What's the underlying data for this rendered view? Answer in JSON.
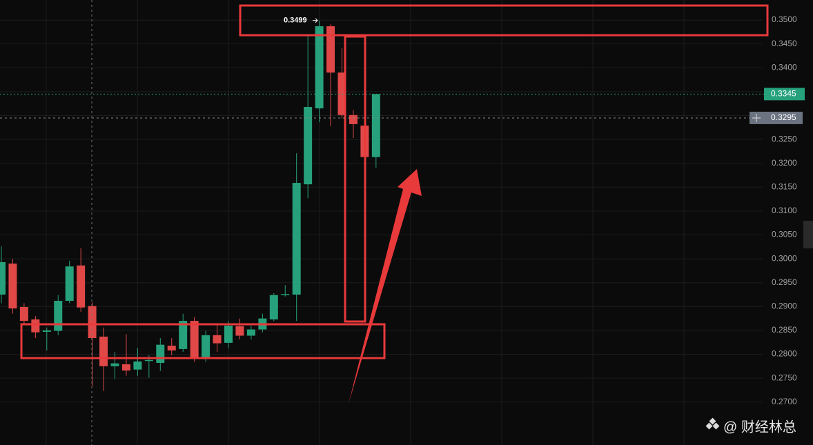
{
  "chart_data": {
    "type": "candlestick",
    "open": [
      0.2925,
      0.299,
      0.2899,
      0.2873,
      0.2847,
      0.2849,
      0.2912,
      0.2986,
      0.2901,
      0.2837,
      0.2775,
      0.2779,
      0.2768,
      0.2786,
      0.2782,
      0.2818,
      0.2811,
      0.287,
      0.279,
      0.284,
      0.2824,
      0.2859,
      0.2839,
      0.2852,
      0.2873,
      0.2924,
      0.2925,
      0.3156,
      0.3315,
      0.3487,
      0.339,
      0.3301,
      0.3279,
      0.3213
    ],
    "high": [
      0.3026,
      0.3,
      0.2907,
      0.288,
      0.2856,
      0.2924,
      0.2996,
      0.3022,
      0.2909,
      0.2856,
      0.2805,
      0.2842,
      0.2813,
      0.2798,
      0.2834,
      0.2834,
      0.2885,
      0.2878,
      0.2849,
      0.2863,
      0.287,
      0.2875,
      0.286,
      0.2885,
      0.2928,
      0.2945,
      0.3221,
      0.347,
      0.3499,
      0.3491,
      0.3441,
      0.3311,
      0.3285,
      0.3345
    ],
    "low": [
      0.2907,
      0.2885,
      0.2863,
      0.2834,
      0.2808,
      0.284,
      0.2907,
      0.2889,
      0.2733,
      0.2723,
      0.2748,
      0.2755,
      0.2755,
      0.2751,
      0.2765,
      0.2798,
      0.2805,
      0.2784,
      0.2784,
      0.2805,
      0.2813,
      0.2831,
      0.2831,
      0.2846,
      0.2869,
      0.2921,
      0.287,
      0.3127,
      0.3286,
      0.3278,
      0.3294,
      0.3253,
      0.3203,
      0.3191
    ],
    "close": [
      0.2993,
      0.2896,
      0.287,
      0.2846,
      0.285,
      0.2912,
      0.2984,
      0.2898,
      0.2834,
      0.2775,
      0.2781,
      0.2766,
      0.2785,
      0.2788,
      0.282,
      0.2808,
      0.287,
      0.279,
      0.284,
      0.2823,
      0.286,
      0.2839,
      0.2852,
      0.2875,
      0.2924,
      0.2926,
      0.3159,
      0.3318,
      0.3487,
      0.339,
      0.3301,
      0.3282,
      0.3213,
      0.3345
    ],
    "up_color": "#26a17b",
    "down_color": "#e04848",
    "ylim": [
      0.261,
      0.3542
    ],
    "yticks": [
      {
        "value": 0.27,
        "label": "0.2700"
      },
      {
        "value": 0.275,
        "label": "0.2750"
      },
      {
        "value": 0.28,
        "label": "0.2800"
      },
      {
        "value": 0.285,
        "label": "0.2850"
      },
      {
        "value": 0.29,
        "label": "0.2900"
      },
      {
        "value": 0.295,
        "label": "0.2950"
      },
      {
        "value": 0.3,
        "label": "0.3000"
      },
      {
        "value": 0.305,
        "label": "0.3050"
      },
      {
        "value": 0.31,
        "label": "0.3100"
      },
      {
        "value": 0.315,
        "label": "0.3150"
      },
      {
        "value": 0.32,
        "label": "0.3200"
      },
      {
        "value": 0.325,
        "label": "0.3250"
      },
      {
        "value": 0.33,
        "label": "0.3300"
      },
      {
        "value": 0.335,
        "label": "0.3350"
      },
      {
        "value": 0.34,
        "label": "0.3400"
      },
      {
        "value": 0.345,
        "label": "0.3450"
      },
      {
        "value": 0.35,
        "label": "0.3500"
      }
    ],
    "grid": true,
    "high_label": {
      "value": 0.3499,
      "label": "0.3499"
    },
    "last_price": {
      "value": 0.3345,
      "label": "0.3345"
    },
    "crosshair_price": {
      "value": 0.3295,
      "label": "0.3295"
    }
  },
  "watermark": "@ 财经林总"
}
